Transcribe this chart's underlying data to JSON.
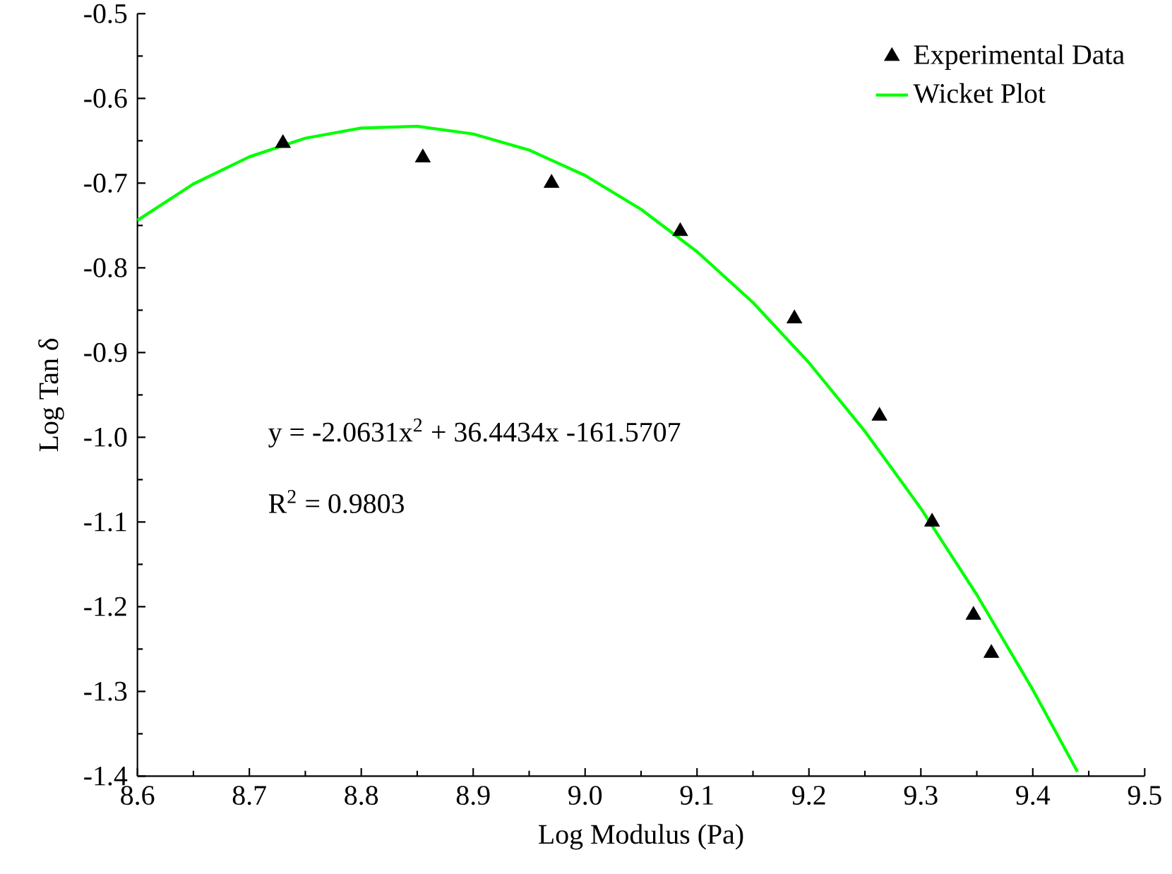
{
  "chart_data": {
    "type": "scatter",
    "xlabel": "Log Modulus (Pa)",
    "ylabel": "Log Tan δ",
    "xlim": [
      8.6,
      9.5
    ],
    "ylim": [
      -1.4,
      -0.5
    ],
    "xticks": [
      {
        "value": 8.6,
        "label": "8.6"
      },
      {
        "value": 8.7,
        "label": "8.7"
      },
      {
        "value": 8.8,
        "label": "8.8"
      },
      {
        "value": 8.9,
        "label": "8.9"
      },
      {
        "value": 9.0,
        "label": "9.0"
      },
      {
        "value": 9.1,
        "label": "9.1"
      },
      {
        "value": 9.2,
        "label": "9.2"
      },
      {
        "value": 9.3,
        "label": "9.3"
      },
      {
        "value": 9.4,
        "label": "9.4"
      },
      {
        "value": 9.5,
        "label": "9.5"
      }
    ],
    "yticks": [
      {
        "value": -1.4,
        "label": "-1.4"
      },
      {
        "value": -1.3,
        "label": "-1.3"
      },
      {
        "value": -1.2,
        "label": "-1.2"
      },
      {
        "value": -1.1,
        "label": "-1.1"
      },
      {
        "value": -1.0,
        "label": "-1.0"
      },
      {
        "value": -0.9,
        "label": "-0.9"
      },
      {
        "value": -0.8,
        "label": "-0.8"
      },
      {
        "value": -0.7,
        "label": "-0.7"
      },
      {
        "value": -0.6,
        "label": "-0.6"
      },
      {
        "value": -0.5,
        "label": "-0.5"
      }
    ],
    "legend": "top right",
    "grid": false,
    "annotations": [
      "y = -2.0631x$^{2}$ + 36.4434x -161.5707",
      "R$^{2}$ = 0.9803"
    ],
    "series": [
      {
        "name": "Experimental Data",
        "color": "#000000",
        "marker": "triangle",
        "x": [
          8.73,
          8.855,
          8.97,
          9.085,
          9.187,
          9.263,
          9.31,
          9.347,
          9.363
        ],
        "values": [
          -0.653,
          -0.67,
          -0.7,
          -0.757,
          -0.86,
          -0.975,
          -1.1,
          -1.21,
          -1.255
        ]
      },
      {
        "name": "Wicket Plot",
        "type": "line",
        "color": "#00ff00",
        "marker": "none",
        "line_style": "solid",
        "x": [
          8.6,
          8.65,
          8.7,
          8.75,
          8.8,
          8.85,
          8.9,
          8.95,
          9.0,
          9.05,
          9.1,
          9.15,
          9.2,
          9.25,
          9.3,
          9.35,
          9.4,
          9.44
        ],
        "values": [
          -0.744,
          -0.701,
          -0.669,
          -0.647,
          -0.635,
          -0.633,
          -0.642,
          -0.661,
          -0.691,
          -0.731,
          -0.781,
          -0.841,
          -0.912,
          -0.993,
          -1.084,
          -1.186,
          -1.298,
          -1.395
        ]
      }
    ]
  }
}
